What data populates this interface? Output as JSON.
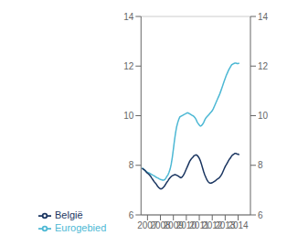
{
  "chart_data": {
    "type": "line",
    "x": [
      2006.5833333333333,
      2006.6666666666667,
      2006.75,
      2006.8333333333333,
      2006.9166666666667,
      2007,
      2007.0833333333333,
      2007.1666666666667,
      2007.25,
      2007.3333333333333,
      2007.4166666666667,
      2007.5,
      2007.5833333333333,
      2007.6666666666667,
      2007.75,
      2007.8333333333333,
      2007.9166666666667,
      2008,
      2008.0833333333333,
      2008.1666666666667,
      2008.25,
      2008.3333333333333,
      2008.4166666666667,
      2008.5,
      2008.5833333333333,
      2008.6666666666667,
      2008.75,
      2008.8333333333333,
      2008.9166666666667,
      2009,
      2009.0833333333333,
      2009.1666666666667,
      2009.25,
      2009.3333333333333,
      2009.4166666666667,
      2009.5,
      2009.5833333333333,
      2009.6666666666667,
      2009.75,
      2009.8333333333333,
      2009.9166666666667,
      2010,
      2010.0833333333333,
      2010.1666666666667,
      2010.25,
      2010.3333333333333,
      2010.4166666666667,
      2010.5,
      2010.5833333333333,
      2010.6666666666667,
      2010.75,
      2010.8333333333333,
      2010.9166666666667,
      2011,
      2011.0833333333333,
      2011.1666666666667,
      2011.25,
      2011.3333333333333,
      2011.4166666666667,
      2011.5,
      2011.5833333333333,
      2011.6666666666667,
      2011.75,
      2011.8333333333333,
      2011.9166666666667,
      2012,
      2012.0833333333333,
      2012.1666666666667,
      2012.25,
      2012.3333333333333,
      2012.4166666666667,
      2012.5,
      2012.5833333333333,
      2012.6666666666667,
      2012.75,
      2012.8333333333333,
      2012.9166666666667,
      2013,
      2013.0833333333333,
      2013.1666666666667,
      2013.25,
      2013.3333333333333,
      2013.4166666666667,
      2013.5,
      2013.5833333333333,
      2013.6666666666667,
      2013.75,
      2013.8333333333333,
      2013.9166666666667,
      2014,
      2014.0833333333333
    ],
    "series": [
      {
        "name": "Eurogebied",
        "color": "#4db8d4",
        "values": [
          7.9,
          7.85,
          7.82,
          7.78,
          7.75,
          7.72,
          7.7,
          7.68,
          7.65,
          7.63,
          7.6,
          7.58,
          7.55,
          7.52,
          7.5,
          7.48,
          7.45,
          7.43,
          7.42,
          7.4,
          7.4,
          7.42,
          7.48,
          7.55,
          7.62,
          7.72,
          7.85,
          8.05,
          8.32,
          8.65,
          9.0,
          9.3,
          9.55,
          9.72,
          9.85,
          9.95,
          9.98,
          10.0,
          10.02,
          10.05,
          10.07,
          10.1,
          10.12,
          10.1,
          10.08,
          10.05,
          10.02,
          10.0,
          9.97,
          9.92,
          9.85,
          9.75,
          9.68,
          9.62,
          9.58,
          9.6,
          9.65,
          9.72,
          9.82,
          9.9,
          9.95,
          10.0,
          10.05,
          10.1,
          10.15,
          10.2,
          10.28,
          10.38,
          10.48,
          10.58,
          10.68,
          10.78,
          10.88,
          11.0,
          11.12,
          11.25,
          11.38,
          11.5,
          11.62,
          11.72,
          11.82,
          11.9,
          11.98,
          12.05,
          12.08,
          12.1,
          12.12,
          12.12,
          12.1,
          12.1,
          12.12
        ]
      },
      {
        "name": "België",
        "color": "#1a3560",
        "values": [
          7.88,
          7.85,
          7.82,
          7.78,
          7.72,
          7.68,
          7.65,
          7.6,
          7.55,
          7.48,
          7.42,
          7.35,
          7.3,
          7.25,
          7.18,
          7.12,
          7.08,
          7.05,
          7.05,
          7.08,
          7.12,
          7.18,
          7.25,
          7.32,
          7.38,
          7.45,
          7.5,
          7.55,
          7.58,
          7.6,
          7.62,
          7.62,
          7.6,
          7.58,
          7.55,
          7.52,
          7.5,
          7.52,
          7.58,
          7.65,
          7.75,
          7.85,
          7.95,
          8.05,
          8.15,
          8.22,
          8.28,
          8.32,
          8.38,
          8.4,
          8.42,
          8.4,
          8.35,
          8.28,
          8.18,
          8.05,
          7.9,
          7.75,
          7.62,
          7.52,
          7.42,
          7.35,
          7.3,
          7.28,
          7.28,
          7.3,
          7.32,
          7.35,
          7.38,
          7.42,
          7.45,
          7.48,
          7.52,
          7.58,
          7.65,
          7.75,
          7.85,
          7.95,
          8.02,
          8.1,
          8.18,
          8.25,
          8.3,
          8.38,
          8.42,
          8.45,
          8.48,
          8.48,
          8.45,
          8.45,
          8.42
        ]
      }
    ],
    "xlim": [
      2006.5,
      2014.95
    ],
    "xticks": [
      2007,
      2008,
      2009,
      2010,
      2011,
      2012,
      2013,
      2014
    ],
    "ylim": [
      6,
      14
    ],
    "yticks": [
      6,
      8,
      10,
      12,
      14
    ],
    "y2lim": [
      6,
      14
    ],
    "y2ticks": [
      6,
      8,
      10,
      12,
      14
    ],
    "grid": true,
    "legend": "bottom"
  }
}
